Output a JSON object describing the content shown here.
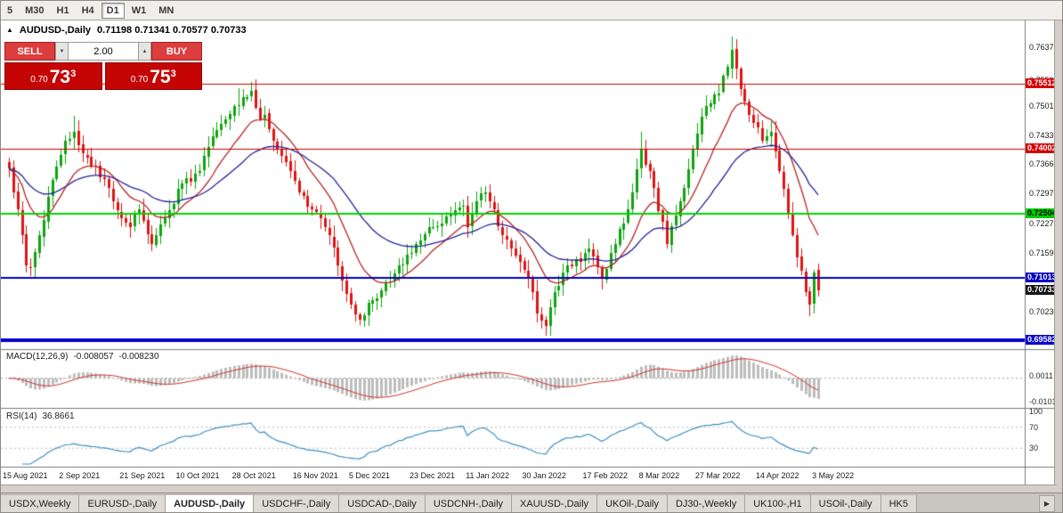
{
  "toolbar": {
    "timeframes": [
      {
        "label": "5",
        "active": false
      },
      {
        "label": "M30",
        "active": false
      },
      {
        "label": "H1",
        "active": false
      },
      {
        "label": "H4",
        "active": false
      },
      {
        "label": "D1",
        "active": true
      },
      {
        "label": "W1",
        "active": false
      },
      {
        "label": "MN",
        "active": false
      }
    ]
  },
  "chart_header": {
    "collapse_icon": "▲",
    "title": "AUDUSD-,Daily",
    "ohlc": "0.71198 0.71341 0.70577 0.70733"
  },
  "trade_panel": {
    "sell_label": "SELL",
    "buy_label": "BUY",
    "volume": "2.00",
    "down_glyph": "▼",
    "up_glyph": "▲",
    "sell_price": {
      "prefix": "0.70",
      "big": "73",
      "sup": "3"
    },
    "buy_price": {
      "prefix": "0.70",
      "big": "75",
      "sup": "3"
    }
  },
  "price_axis": {
    "ticks": [
      {
        "text": "0.76370",
        "value": 0.7637
      },
      {
        "text": "0.75590",
        "value": 0.7559
      },
      {
        "text": "0.75010",
        "value": 0.7501
      },
      {
        "text": "0.74330",
        "value": 0.7433
      },
      {
        "text": "0.73660",
        "value": 0.7366
      },
      {
        "text": "0.72970",
        "value": 0.7297
      },
      {
        "text": "0.72270",
        "value": 0.7227
      },
      {
        "text": "0.71590",
        "value": 0.7159
      },
      {
        "text": "0.70230",
        "value": 0.7023
      }
    ],
    "badges": [
      {
        "text": "0.75512",
        "value": 0.75512,
        "bg": "#d40000",
        "fg": "#ffffff"
      },
      {
        "text": "0.74002",
        "value": 0.74002,
        "bg": "#d40000",
        "fg": "#ffffff"
      },
      {
        "text": "0.72504",
        "value": 0.72504,
        "bg": "#00cc00",
        "fg": "#000000"
      },
      {
        "text": "0.71013",
        "value": 0.71013,
        "bg": "#0000bb",
        "fg": "#ffffff"
      },
      {
        "text": "0.70733",
        "value": 0.70733,
        "bg": "#141414",
        "fg": "#ffffff"
      },
      {
        "text": "0.69582",
        "value": 0.69582,
        "bg": "#0000cc",
        "fg": "#ffffff"
      }
    ]
  },
  "indicator_labels": {
    "macd": {
      "title": "MACD(12,26,9)",
      "main_value": "-0.008057",
      "signal_value": "-0.008230",
      "axis_labels": [
        {
          "text": "0.0011",
          "value": 0.0011
        },
        {
          "text": "-0.0101",
          "value": -0.0101
        }
      ]
    },
    "rsi": {
      "title": "RSI(14)",
      "value": "36.8661",
      "axis_labels": [
        {
          "text": "100",
          "value": 100
        },
        {
          "text": "70",
          "value": 70
        },
        {
          "text": "30",
          "value": 30
        }
      ]
    }
  },
  "tabs": {
    "active_index": 2,
    "scroll_right_icon": "▶",
    "items": [
      "USDX,Weekly",
      "EURUSD-,Daily",
      "AUDUSD-,Daily",
      "USDCHF-,Daily",
      "USDCAD-,Daily",
      "USDCNH-,Daily",
      "XAUUSD-,Daily",
      "UKOil-,Daily",
      "DJ30-,Weekly",
      "UK100-,H1",
      "USOil-,Daily",
      "HK5"
    ]
  },
  "chart_data": {
    "type": "candlestick",
    "symbol": "AUDUSD-,Daily",
    "bar_count": 188,
    "ylim": [
      0.6939,
      0.769
    ],
    "last_candle": {
      "open": 0.71198,
      "high": 0.71341,
      "low": 0.70577,
      "close": 0.70733
    },
    "up_color": "#0ea50e",
    "down_color": "#e01414",
    "x_labels": [
      "15 Aug 2021",
      "2 Sep 2021",
      "21 Sep 2021",
      "10 Oct 2021",
      "28 Oct 2021",
      "16 Nov 2021",
      "5 Dec 2021",
      "23 Dec 2021",
      "11 Jan 2022",
      "30 Jan 2022",
      "17 Feb 2022",
      "8 Mar 2022",
      "27 Mar 2022",
      "14 Apr 2022",
      "3 May 2022"
    ],
    "close_anchors": [
      [
        0,
        0.7355
      ],
      [
        2,
        0.726
      ],
      [
        4,
        0.713
      ],
      [
        5,
        0.7125
      ],
      [
        7,
        0.72
      ],
      [
        9,
        0.729
      ],
      [
        11,
        0.736
      ],
      [
        13,
        0.742
      ],
      [
        15,
        0.744
      ],
      [
        17,
        0.739
      ],
      [
        20,
        0.736
      ],
      [
        23,
        0.731
      ],
      [
        26,
        0.724
      ],
      [
        28,
        0.722
      ],
      [
        30,
        0.726
      ],
      [
        33,
        0.718
      ],
      [
        36,
        0.724
      ],
      [
        40,
        0.732
      ],
      [
        44,
        0.735
      ],
      [
        47,
        0.743
      ],
      [
        50,
        0.747
      ],
      [
        52,
        0.75
      ],
      [
        54,
        0.752
      ],
      [
        56,
        0.7535
      ],
      [
        58,
        0.747
      ],
      [
        59,
        0.748
      ],
      [
        62,
        0.74
      ],
      [
        65,
        0.735
      ],
      [
        67,
        0.73
      ],
      [
        70,
        0.726
      ],
      [
        73,
        0.722
      ],
      [
        74,
        0.72
      ],
      [
        76,
        0.713
      ],
      [
        78,
        0.7065
      ],
      [
        81,
        0.7005
      ],
      [
        84,
        0.705
      ],
      [
        87,
        0.709
      ],
      [
        90,
        0.713
      ],
      [
        94,
        0.718
      ],
      [
        98,
        0.722
      ],
      [
        102,
        0.725
      ],
      [
        105,
        0.727
      ],
      [
        106,
        0.722
      ],
      [
        108,
        0.728
      ],
      [
        110,
        0.73
      ],
      [
        112,
        0.726
      ],
      [
        114,
        0.72
      ],
      [
        116,
        0.717
      ],
      [
        118,
        0.714
      ],
      [
        120,
        0.71
      ],
      [
        122,
        0.702
      ],
      [
        124,
        0.699
      ],
      [
        126,
        0.707
      ],
      [
        129,
        0.713
      ],
      [
        132,
        0.714
      ],
      [
        134,
        0.717
      ],
      [
        137,
        0.71
      ],
      [
        140,
        0.718
      ],
      [
        143,
        0.726
      ],
      [
        146,
        0.74
      ],
      [
        149,
        0.731
      ],
      [
        152,
        0.718
      ],
      [
        155,
        0.728
      ],
      [
        158,
        0.74
      ],
      [
        161,
        0.75
      ],
      [
        164,
        0.753
      ],
      [
        166,
        0.759
      ],
      [
        167,
        0.763
      ],
      [
        169,
        0.754
      ],
      [
        171,
        0.748
      ],
      [
        173,
        0.745
      ],
      [
        174,
        0.742
      ],
      [
        176,
        0.744
      ],
      [
        178,
        0.735
      ],
      [
        180,
        0.725
      ],
      [
        182,
        0.715
      ],
      [
        184,
        0.707
      ],
      [
        185,
        0.704
      ],
      [
        186,
        0.7115
      ],
      [
        187,
        0.70733
      ]
    ],
    "wick_overrides": {
      "5": {
        "low": 0.7106
      },
      "15": {
        "high": 0.7478
      },
      "53": {
        "high": 0.7541
      },
      "56": {
        "high": 0.7555
      },
      "81": {
        "low": 0.6993
      },
      "110": {
        "high": 0.7314
      },
      "124": {
        "low": 0.6968
      },
      "146": {
        "high": 0.744
      },
      "167": {
        "high": 0.7661
      },
      "187": {
        "open": 0.71198,
        "high": 0.71341,
        "low": 0.70577,
        "close": 0.70733
      }
    },
    "overlays": [
      {
        "name": "ma-fast",
        "method": "ema",
        "period": 13,
        "color": "#b82525"
      },
      {
        "name": "ma-slow",
        "method": "ema",
        "period": 34,
        "color": "#24249c"
      }
    ],
    "hlines": [
      {
        "price": 0.75512,
        "color": "#d40000",
        "width": 1
      },
      {
        "price": 0.74002,
        "color": "#d40000",
        "width": 1
      },
      {
        "price": 0.72504,
        "color": "#00d800",
        "width": 2
      },
      {
        "price": 0.71013,
        "color": "#0000b4",
        "width": 2
      },
      {
        "price": 0.69582,
        "color": "#0000c8",
        "width": 4
      }
    ],
    "indicator_params": {
      "macd": {
        "fast": 12,
        "slow": 26,
        "signal": 9,
        "hist_color": "#bdbdbd",
        "signal_color": "#d23434"
      },
      "rsi": {
        "period": 14,
        "color": "#3f8fc4",
        "levels": [
          70,
          30
        ]
      }
    }
  }
}
